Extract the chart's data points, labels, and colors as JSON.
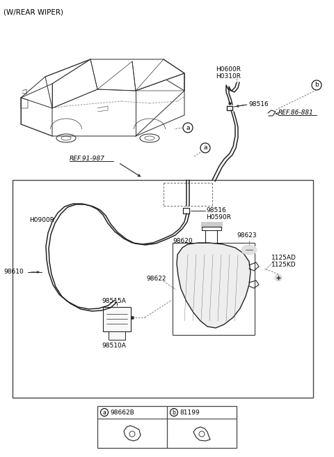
{
  "title": "(W/REAR WIPER)",
  "bg_color": "#ffffff",
  "fig_width": 4.8,
  "fig_height": 6.55,
  "dpi": 100,
  "labels": {
    "top_left": "(W/REAR WIPER)",
    "ref_91_987": "REF.91-987",
    "ref_86_881": "REF.86-881",
    "H0600R": "H0600R",
    "H0310R": "H0310R",
    "H0900R": "H0900R",
    "H0590R": "H0590R",
    "p98516_top": "98516",
    "p98516_box": "98516",
    "p98620": "98620",
    "p98622": "98622",
    "p98623": "98623",
    "p98610": "98610",
    "p98515A": "98515A",
    "p98510A": "98510A",
    "p1125AD": "1125AD",
    "p1125KD": "1125KD",
    "legend_a_code": "98662B",
    "legend_b_code": "81199"
  },
  "colors": {
    "black": "#000000",
    "dark": "#222222",
    "gray": "#666666",
    "light_gray": "#aaaaaa",
    "box_border": "#333333"
  }
}
